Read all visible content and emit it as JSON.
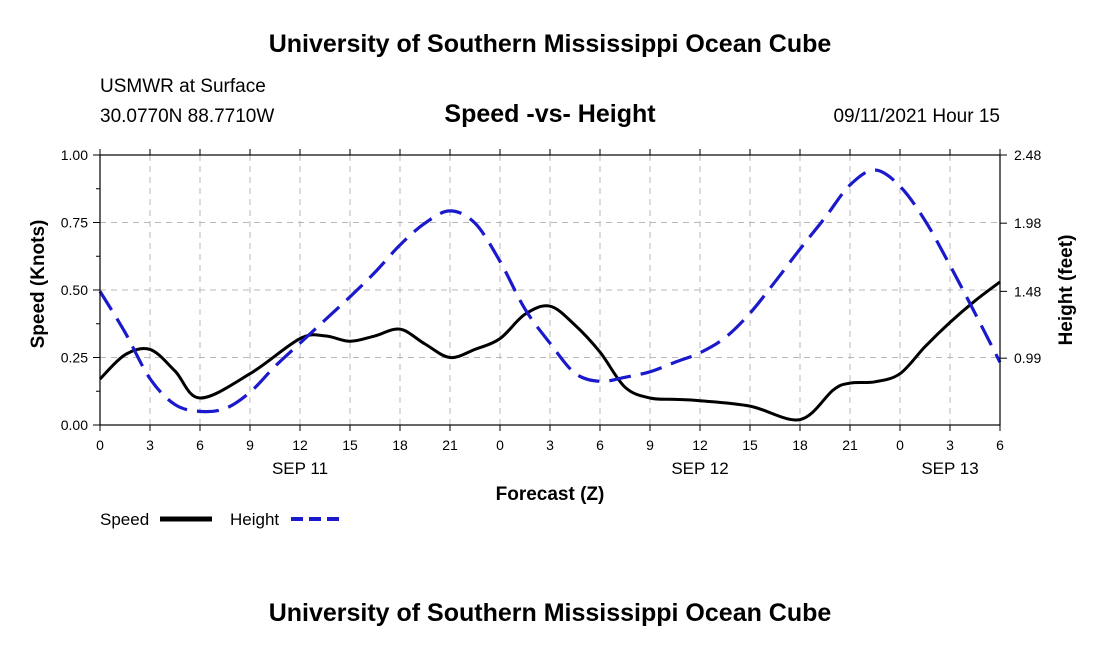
{
  "header": {
    "title": "University of Southern Mississippi Ocean Cube",
    "station": "USMWR at Surface",
    "coords": "30.0770N  88.7710W",
    "chart_title": "Speed -vs- Height",
    "datetime": "09/11/2021 Hour 15"
  },
  "footer": {
    "title": "University of Southern Mississippi Ocean Cube"
  },
  "colors": {
    "speed": "#000000",
    "height": "#1a1acc",
    "grid": "#b8b8b8"
  },
  "chart_data": {
    "type": "line",
    "title": "Speed -vs- Height",
    "xlabel": "Forecast (Z)",
    "ylabel": "Speed (Knots)",
    "ylabel_right": "Height (feet)",
    "x_range": [
      0,
      54
    ],
    "y_range": [
      0,
      1.0
    ],
    "y_right_range": [
      0.5,
      2.48
    ],
    "x_ticks": [
      0,
      3,
      6,
      9,
      12,
      15,
      18,
      21,
      24,
      27,
      30,
      33,
      36,
      39,
      42,
      45,
      48,
      51,
      54
    ],
    "x_tick_labels": [
      "0",
      "3",
      "6",
      "9",
      "12",
      "15",
      "18",
      "21",
      "0",
      "3",
      "6",
      "9",
      "12",
      "15",
      "18",
      "21",
      "0",
      "3",
      "6"
    ],
    "y_ticks": [
      0,
      0.25,
      0.5,
      0.75,
      1.0
    ],
    "y_tick_labels": [
      "0.00",
      "0.25",
      "0.50",
      "0.75",
      "1.00"
    ],
    "y_right_ticks": [
      0.99,
      1.48,
      1.98,
      2.48
    ],
    "y_right_tick_labels": [
      "0.99",
      "1.48",
      "1.98",
      "2.48"
    ],
    "date_labels": [
      {
        "x": 12,
        "label": "SEP 11"
      },
      {
        "x": 36,
        "label": "SEP 12"
      },
      {
        "x": 51,
        "label": "SEP 13"
      }
    ],
    "grid": true,
    "legend": {
      "placement": "bottom-left",
      "speed_label": "Speed",
      "height_label": "Height"
    },
    "series": [
      {
        "name": "Speed",
        "axis": "left",
        "style": "solid",
        "x": [
          0,
          1.5,
          3,
          4.5,
          6,
          9,
          12,
          13.5,
          15,
          16.5,
          18,
          19.5,
          21,
          22.5,
          24,
          25.5,
          27,
          28.5,
          30,
          31.5,
          33,
          34.5,
          36,
          39,
          42,
          44,
          45,
          46.5,
          48,
          49.5,
          51,
          52.5,
          54
        ],
        "values": [
          0.17,
          0.26,
          0.28,
          0.2,
          0.1,
          0.19,
          0.32,
          0.33,
          0.31,
          0.33,
          0.355,
          0.3,
          0.25,
          0.28,
          0.32,
          0.41,
          0.44,
          0.37,
          0.27,
          0.14,
          0.1,
          0.095,
          0.09,
          0.07,
          0.02,
          0.13,
          0.155,
          0.16,
          0.19,
          0.29,
          0.38,
          0.46,
          0.53
        ]
      },
      {
        "name": "Height",
        "axis": "right",
        "style": "dashed",
        "x": [
          0,
          1.5,
          3,
          4.5,
          6,
          7.5,
          9,
          10.5,
          12,
          13.5,
          15,
          16.5,
          18,
          19.5,
          21,
          22.5,
          24,
          25.5,
          27,
          28.5,
          30,
          31.5,
          33,
          34.5,
          36,
          37.5,
          39,
          40.5,
          42,
          43.5,
          45,
          46.5,
          48,
          49.5,
          51,
          52.5,
          54
        ],
        "values": [
          1.48,
          1.18,
          0.84,
          0.65,
          0.6,
          0.62,
          0.74,
          0.93,
          1.1,
          1.27,
          1.44,
          1.62,
          1.82,
          1.98,
          2.07,
          1.98,
          1.7,
          1.35,
          1.1,
          0.88,
          0.82,
          0.85,
          0.89,
          0.96,
          1.03,
          1.14,
          1.32,
          1.55,
          1.79,
          2.02,
          2.26,
          2.37,
          2.25,
          2.0,
          1.67,
          1.32,
          0.96
        ]
      }
    ]
  }
}
